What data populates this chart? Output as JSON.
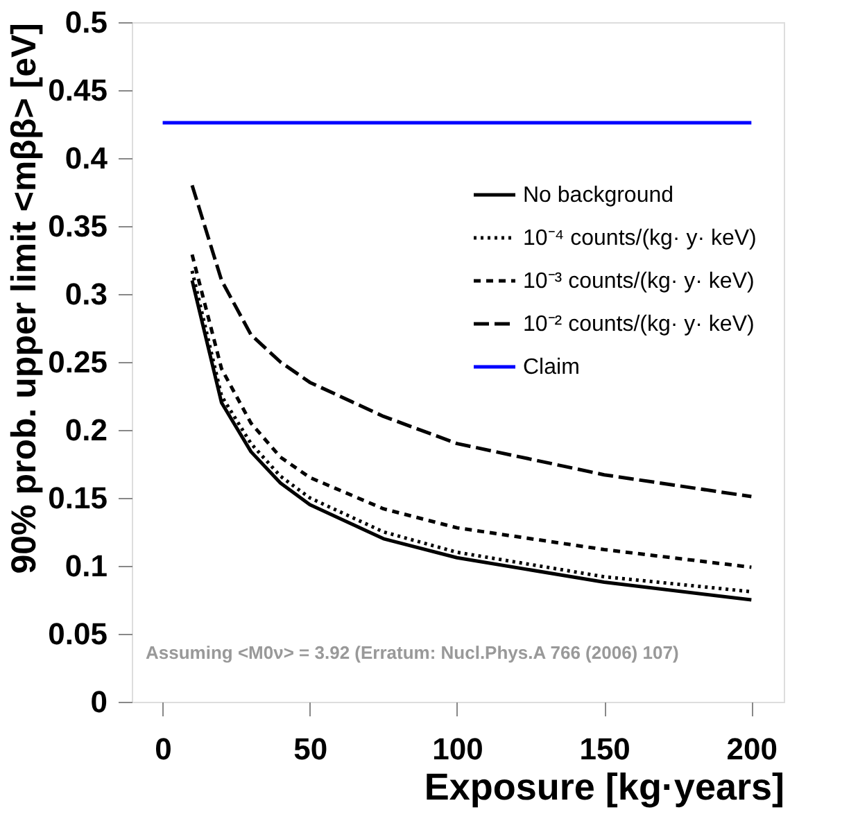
{
  "chart_data": {
    "type": "line",
    "xlabel": "Exposure [kg·years]",
    "ylabel": "90% prob. upper limit <mββ> [eV]",
    "xlim": [
      -10.5,
      211
    ],
    "ylim": [
      0,
      0.5
    ],
    "xticks": [
      0,
      50,
      100,
      150,
      200
    ],
    "yticks": [
      0,
      0.05,
      0.1,
      0.15,
      0.2,
      0.25,
      0.3,
      0.35,
      0.4,
      0.45,
      0.5
    ],
    "grid": false,
    "legend": "top right",
    "marker": "none",
    "annotations": [
      "Assuming <M0ν> = 3.92 (Erratum: Nucl.Phys.A 766 (2006) 107)"
    ],
    "series": [
      {
        "name": "No background",
        "color": "#000000",
        "line_style": "solid",
        "x": [
          10,
          20,
          30,
          40,
          50,
          75,
          100,
          150,
          200
        ],
        "values": [
          0.31,
          0.22,
          0.184,
          0.161,
          0.145,
          0.12,
          0.106,
          0.088,
          0.075
        ]
      },
      {
        "name": "10⁻⁴ counts/(kg· y· keV)",
        "color": "#000000",
        "line_style": "dotted",
        "x": [
          10,
          20,
          30,
          40,
          50,
          75,
          100,
          150,
          200
        ],
        "values": [
          0.317,
          0.225,
          0.19,
          0.166,
          0.15,
          0.125,
          0.11,
          0.092,
          0.081
        ]
      },
      {
        "name": "10⁻³ counts/(kg· y· keV)",
        "color": "#000000",
        "line_style": "dashed",
        "x": [
          10,
          20,
          30,
          40,
          50,
          75,
          100,
          150,
          200
        ],
        "values": [
          0.329,
          0.245,
          0.205,
          0.18,
          0.165,
          0.142,
          0.128,
          0.112,
          0.099
        ]
      },
      {
        "name": "10⁻² counts/(kg· y· keV)",
        "color": "#000000",
        "line_style": "dashed",
        "x": [
          10,
          20,
          30,
          40,
          50,
          75,
          100,
          150,
          200
        ],
        "values": [
          0.38,
          0.31,
          0.27,
          0.25,
          0.235,
          0.21,
          0.19,
          0.167,
          0.151
        ]
      },
      {
        "name": "Claim",
        "color": "#0000ff",
        "line_style": "solid",
        "x": [
          0,
          200
        ],
        "values": [
          0.426,
          0.426
        ]
      }
    ]
  }
}
